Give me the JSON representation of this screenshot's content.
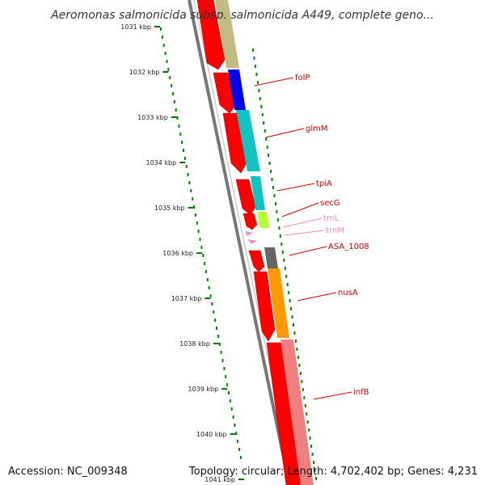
{
  "title": "Aeromonas salmonicida subsp. salmonicida A449, complete geno...",
  "footer": {
    "accession": "Accession: NC_009348",
    "summary": "Topology: circular; Length: 4,702,402 bp; Genes: 4,231"
  },
  "ticks": [
    "1031 kbp",
    "1032 kbp",
    "1033 kbp",
    "1034 kbp",
    "1035 kbp",
    "1036 kbp",
    "1037 kbp",
    "1038 kbp",
    "1039 kbp",
    "1040 kbp",
    "1041 kbp"
  ],
  "genes": [
    {
      "name": "folP",
      "color": "#cc0000"
    },
    {
      "name": "glmM",
      "color": "#cc0000"
    },
    {
      "name": "tpiA",
      "color": "#cc0000"
    },
    {
      "name": "secG",
      "color": "#cc0000"
    },
    {
      "name": "trnL",
      "color": "#ee88bb"
    },
    {
      "name": "trnM",
      "color": "#ee88bb"
    },
    {
      "name": "ASA_1008",
      "color": "#cc0000"
    },
    {
      "name": "nusA",
      "color": "#cc0000"
    },
    {
      "name": "infB",
      "color": "#cc0000"
    }
  ],
  "colors": {
    "forward": "#ff0000",
    "olive": "#c2bc82",
    "blue": "#0000ee",
    "cyan": "#11c3c3",
    "lime": "#b8ff33",
    "gray": "#666666",
    "orange": "#ff9900",
    "salmon": "#f08080",
    "trna": "#ff88cc",
    "gc_dots": "#008800"
  }
}
